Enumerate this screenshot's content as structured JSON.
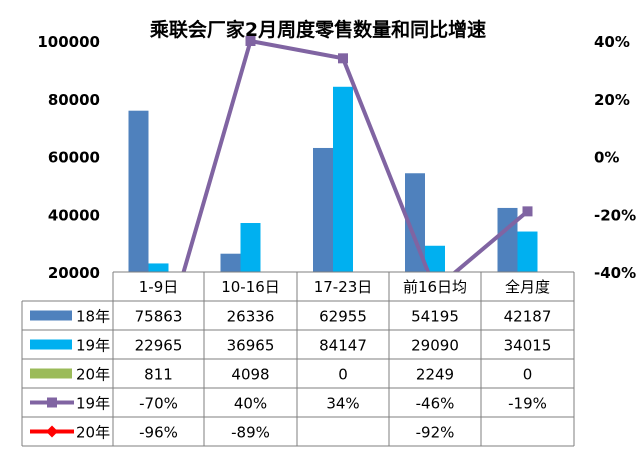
{
  "chart_data": {
    "type": "bar",
    "title": "乘联会厂家2月周度零售数量和同比增速",
    "categories": [
      "1-9日",
      "10-16日",
      "17-23日",
      "前16日均",
      "全月度"
    ],
    "y_left": {
      "min": 20000,
      "max": 100000,
      "step": 20000,
      "ticks": [
        "20000",
        "40000",
        "60000",
        "80000",
        "100000"
      ]
    },
    "y_right": {
      "min": -40,
      "max": 40,
      "step": 20,
      "ticks": [
        "-40%",
        "-20%",
        "0%",
        "20%",
        "40%"
      ]
    },
    "series": [
      {
        "name": "18年",
        "kind": "bar",
        "axis": "left",
        "color": "#4f81bd",
        "values": [
          75863,
          26336,
          62955,
          54195,
          42187
        ],
        "labels": [
          "75863",
          "26336",
          "62955",
          "54195",
          "42187"
        ]
      },
      {
        "name": "19年",
        "kind": "bar",
        "axis": "left",
        "color": "#00b0f0",
        "values": [
          22965,
          36965,
          84147,
          29090,
          34015
        ],
        "labels": [
          "22965",
          "36965",
          "84147",
          "29090",
          "34015"
        ]
      },
      {
        "name": "20年",
        "kind": "bar",
        "axis": "left",
        "color": "#9bbb59",
        "values": [
          811,
          4098,
          0,
          2249,
          0
        ],
        "labels": [
          "811",
          "4098",
          "0",
          "2249",
          "0"
        ]
      },
      {
        "name": "19年",
        "kind": "line",
        "axis": "right",
        "color": "#8064a2",
        "marker": "square",
        "values": [
          -70,
          40,
          34,
          -46,
          -19
        ],
        "labels": [
          "-70%",
          "40%",
          "34%",
          "-46%",
          "-19%"
        ]
      },
      {
        "name": "20年",
        "kind": "line",
        "axis": "right",
        "color": "#ff0000",
        "marker": "diamond",
        "values": [
          -96,
          -89,
          null,
          -92,
          null
        ],
        "labels": [
          "-96%",
          "-89%",
          "",
          "-92%",
          ""
        ]
      }
    ]
  }
}
